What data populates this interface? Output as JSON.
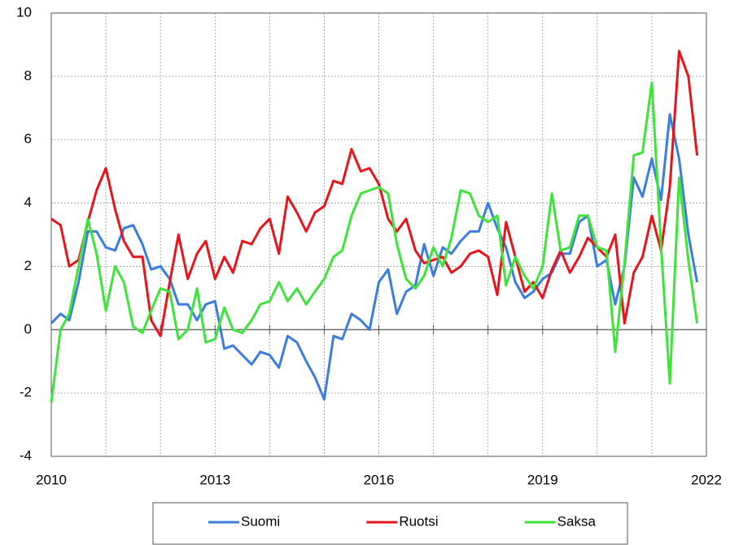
{
  "chart_data": {
    "type": "line",
    "x": [
      2010,
      2010.17,
      2010.33,
      2010.5,
      2010.67,
      2010.83,
      2011,
      2011.17,
      2011.33,
      2011.5,
      2011.67,
      2011.83,
      2012,
      2012.17,
      2012.33,
      2012.5,
      2012.67,
      2012.83,
      2013,
      2013.17,
      2013.33,
      2013.5,
      2013.67,
      2013.83,
      2014,
      2014.17,
      2014.33,
      2014.5,
      2014.67,
      2014.83,
      2015,
      2015.17,
      2015.33,
      2015.5,
      2015.67,
      2015.83,
      2016,
      2016.17,
      2016.33,
      2016.5,
      2016.67,
      2016.83,
      2017,
      2017.17,
      2017.33,
      2017.5,
      2017.67,
      2017.83,
      2018,
      2018.17,
      2018.33,
      2018.5,
      2018.67,
      2018.83,
      2019,
      2019.17,
      2019.33,
      2019.5,
      2019.67,
      2019.83,
      2020,
      2020.17,
      2020.33,
      2020.5,
      2020.67,
      2020.83,
      2021,
      2021.17,
      2021.33,
      2021.5,
      2021.67,
      2021.83
    ],
    "series": [
      {
        "name": "Suomi",
        "color": "#3b7ddd",
        "values": [
          0.2,
          0.5,
          0.3,
          1.5,
          3.1,
          3.1,
          2.6,
          2.5,
          3.2,
          3.3,
          2.7,
          1.9,
          2.0,
          1.6,
          0.8,
          0.8,
          0.3,
          0.8,
          0.9,
          -0.6,
          -0.5,
          -0.8,
          -1.1,
          -0.7,
          -0.8,
          -1.2,
          -0.2,
          -0.4,
          -1.0,
          -1.5,
          -2.2,
          -0.2,
          -0.3,
          0.5,
          0.3,
          0.0,
          1.5,
          1.9,
          0.5,
          1.2,
          1.4,
          2.7,
          1.7,
          2.6,
          2.4,
          2.8,
          3.1,
          3.1,
          4.0,
          3.2,
          2.6,
          1.5,
          1.0,
          1.2,
          1.6,
          1.8,
          2.4,
          2.4,
          3.4,
          3.6,
          2.0,
          2.2,
          0.8,
          2.0,
          4.8,
          4.2,
          5.4,
          4.1,
          6.8,
          5.4,
          3.0,
          1.5
        ]
      },
      {
        "name": "Ruotsi",
        "color": "#e8141b",
        "values": [
          3.5,
          3.3,
          2.0,
          2.2,
          3.4,
          4.4,
          5.1,
          3.8,
          2.8,
          2.3,
          2.3,
          0.3,
          -0.2,
          1.5,
          3.0,
          1.6,
          2.4,
          2.8,
          1.6,
          2.3,
          1.8,
          2.8,
          2.7,
          3.2,
          3.5,
          2.4,
          4.2,
          3.7,
          3.1,
          3.7,
          3.9,
          4.7,
          4.6,
          5.7,
          5.0,
          5.1,
          4.6,
          3.5,
          3.1,
          3.5,
          2.5,
          2.1,
          2.2,
          2.3,
          1.8,
          2.0,
          2.4,
          2.5,
          2.3,
          1.1,
          3.4,
          2.3,
          1.2,
          1.5,
          1.0,
          1.9,
          2.5,
          1.8,
          2.3,
          2.9,
          2.6,
          2.3,
          3.0,
          0.2,
          1.8,
          2.3,
          3.6,
          2.5,
          4.5,
          8.8,
          8.0,
          5.5
        ]
      },
      {
        "name": "Saksa",
        "color": "#3ee43a",
        "values": [
          -2.3,
          0.0,
          0.5,
          2.0,
          3.5,
          2.4,
          0.6,
          2.0,
          1.5,
          0.1,
          -0.1,
          0.6,
          1.3,
          1.2,
          -0.3,
          0.0,
          1.3,
          -0.4,
          -0.3,
          0.7,
          0.0,
          -0.1,
          0.3,
          0.8,
          0.9,
          1.5,
          0.9,
          1.3,
          0.8,
          1.2,
          1.6,
          2.3,
          2.5,
          3.6,
          4.3,
          4.4,
          4.5,
          4.3,
          2.7,
          1.6,
          1.3,
          1.7,
          2.6,
          2.0,
          2.9,
          4.4,
          4.3,
          3.6,
          3.4,
          3.6,
          1.4,
          2.3,
          1.7,
          1.3,
          2.0,
          4.3,
          2.5,
          2.6,
          3.6,
          3.6,
          2.6,
          2.5,
          -0.7,
          2.1,
          5.5,
          5.6,
          7.8,
          2.6,
          -1.7,
          4.8,
          2.2,
          0.2
        ]
      }
    ],
    "xlim": [
      2010,
      2022
    ],
    "xticks": [
      2010,
      2013,
      2016,
      2019,
      2022
    ],
    "minor_xticks": [
      2010,
      2011,
      2012,
      2013,
      2014,
      2015,
      2016,
      2017,
      2018,
      2019,
      2020,
      2021,
      2022
    ],
    "ylim": [
      -4,
      10
    ],
    "yticks": [
      -4,
      -2,
      0,
      2,
      4,
      6,
      8,
      10
    ],
    "grid": true,
    "legend": "bottom"
  }
}
